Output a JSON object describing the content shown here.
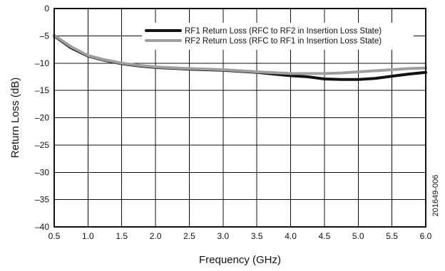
{
  "chart_data": {
    "type": "line",
    "title": "",
    "xlabel": "Frequency (GHz)",
    "ylabel": "Return Loss (dB)",
    "xlim": [
      0.5,
      6.0
    ],
    "ylim": [
      -40,
      0
    ],
    "x_ticks": [
      0.5,
      1.0,
      1.5,
      2.0,
      2.5,
      3.0,
      3.5,
      4.0,
      4.5,
      5.0,
      5.5,
      6.0
    ],
    "x_tick_labels": [
      "0.5",
      "1.0",
      "1.5",
      "2.0",
      "2.5",
      "3.0",
      "3.5",
      "4.0",
      "4.5",
      "5.0",
      "5.5",
      "6.0"
    ],
    "y_ticks": [
      0,
      -5,
      -10,
      -15,
      -20,
      -25,
      -30,
      -35,
      -40
    ],
    "y_tick_labels": [
      "0",
      "–5",
      "–10",
      "–15",
      "–20",
      "–25",
      "–30",
      "–35",
      "–40"
    ],
    "grid": true,
    "legend_position": "top-right",
    "figure_id": "201649-006",
    "x": [
      0.5,
      0.75,
      1.0,
      1.25,
      1.5,
      1.75,
      2.0,
      2.5,
      3.0,
      3.5,
      4.0,
      4.25,
      4.5,
      4.75,
      5.0,
      5.25,
      5.5,
      5.75,
      6.0
    ],
    "series": [
      {
        "name": "RF1 Return Loss (RFC to RF2 in Insertion Loss State)",
        "color": "#111111",
        "values": [
          -5.0,
          -7.2,
          -8.7,
          -9.5,
          -10.1,
          -10.5,
          -10.8,
          -11.1,
          -11.3,
          -11.7,
          -12.3,
          -12.5,
          -12.9,
          -13.0,
          -13.0,
          -12.8,
          -12.4,
          -12.0,
          -11.7
        ]
      },
      {
        "name": "RF2 Return Loss (RFC to RF1 in Insertion Loss State)",
        "color": "#9e9e9e",
        "values": [
          -4.9,
          -7.0,
          -8.6,
          -9.4,
          -10.0,
          -10.4,
          -10.7,
          -11.0,
          -11.2,
          -11.6,
          -11.9,
          -11.9,
          -11.9,
          -11.8,
          -11.6,
          -11.4,
          -11.2,
          -11.0,
          -10.9
        ]
      }
    ]
  }
}
